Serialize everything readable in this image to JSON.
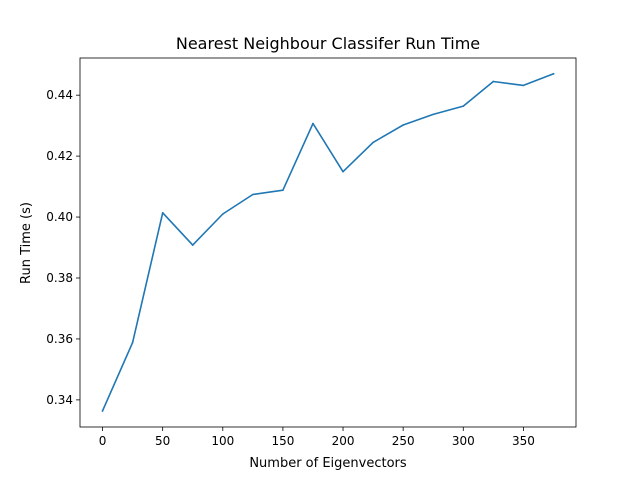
{
  "chart_data": {
    "type": "line",
    "title": "Nearest Neighbour Classifer Run Time",
    "xlabel": "Number of Eigenvectors",
    "ylabel": "Run Time (s)",
    "xlim": [
      -18.75,
      393.75
    ],
    "ylim": [
      0.3311,
      0.4522
    ],
    "xticks": [
      0,
      50,
      100,
      150,
      200,
      250,
      300,
      350
    ],
    "xtick_labels": [
      "0",
      "50",
      "100",
      "150",
      "200",
      "250",
      "300",
      "350"
    ],
    "yticks": [
      0.34,
      0.36,
      0.38,
      0.4,
      0.42,
      0.44
    ],
    "ytick_labels": [
      "0.34",
      "0.36",
      "0.38",
      "0.40",
      "0.42",
      "0.44"
    ],
    "grid": false,
    "legend": "none",
    "series": [
      {
        "color": "#1f77b4",
        "x": [
          0,
          25,
          50,
          75,
          100,
          125,
          150,
          175,
          200,
          225,
          250,
          275,
          300,
          325,
          350,
          375
        ],
        "y": [
          0.3364,
          0.3588,
          0.4014,
          0.3908,
          0.401,
          0.4074,
          0.4088,
          0.4307,
          0.4149,
          0.4245,
          0.4302,
          0.4337,
          0.4364,
          0.4445,
          0.4432,
          0.447
        ]
      }
    ]
  }
}
